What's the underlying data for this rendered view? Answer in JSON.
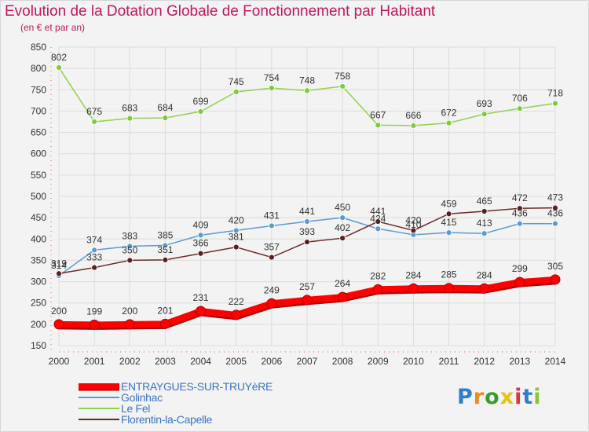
{
  "title": "Evolution de la Dotation Globale de Fonctionnement par Habitant",
  "subtitle": "(en € et par an)",
  "logo_text": "Proxiti",
  "chart_data": {
    "type": "line",
    "title": "Evolution de la Dotation Globale de Fonctionnement par Habitant",
    "subtitle": "(en € et par an)",
    "x": [
      2000,
      2001,
      2002,
      2003,
      2004,
      2005,
      2006,
      2007,
      2008,
      2009,
      2010,
      2011,
      2012,
      2013,
      2014
    ],
    "x_tick_labels": [
      "2000",
      "2001",
      "2002",
      "2003",
      "2004",
      "2005",
      "2006",
      "2007",
      "2008",
      "2009",
      "2010",
      "2011",
      "2012",
      "2013",
      "2014"
    ],
    "ylim": [
      150,
      850
    ],
    "y_tick_labels": [
      "150",
      "200",
      "250",
      "300",
      "350",
      "400",
      "450",
      "500",
      "550",
      "600",
      "650",
      "700",
      "750",
      "800",
      "850"
    ],
    "y_ticks": [
      150,
      200,
      250,
      300,
      350,
      400,
      450,
      500,
      550,
      600,
      650,
      700,
      750,
      800,
      850
    ],
    "grid": true,
    "legend_position": "bottom-left",
    "series": [
      {
        "name": "ENTRAYGUES-SUR-TRUYèRE",
        "color": "#ff0000",
        "shadow": "#b40000",
        "values": [
          200,
          199,
          200,
          201,
          231,
          222,
          249,
          257,
          264,
          282,
          284,
          285,
          284,
          299,
          305
        ],
        "labels": [
          "200",
          "199",
          "200",
          "201",
          "231",
          "222",
          "249",
          "257",
          "264",
          "282",
          "284",
          "285",
          "284",
          "299",
          "305"
        ]
      },
      {
        "name": "Golinhac",
        "color": "#5b9bd5",
        "point": "#5b9bd5",
        "values": [
          314,
          374,
          383,
          385,
          409,
          420,
          431,
          441,
          450,
          424,
          410,
          415,
          413,
          436,
          436
        ],
        "labels": [
          "314",
          "374",
          "383",
          "385",
          "409",
          "420",
          "431",
          "441",
          "450",
          "424",
          "410",
          "415",
          "413",
          "436",
          "436"
        ]
      },
      {
        "name": "Le Fel",
        "color": "#92d050",
        "point": "#7ccc3a",
        "values": [
          802,
          675,
          683,
          684,
          699,
          745,
          754,
          748,
          758,
          667,
          666,
          672,
          693,
          706,
          718
        ],
        "labels": [
          "802",
          "675",
          "683",
          "684",
          "699",
          "745",
          "754",
          "748",
          "758",
          "667",
          "666",
          "672",
          "693",
          "706",
          "718"
        ]
      },
      {
        "name": "Florentin-la-Capelle",
        "color": "#6b2a2a",
        "point": "#5a1f1f",
        "values": [
          319,
          333,
          350,
          351,
          366,
          381,
          357,
          393,
          402,
          441,
          420,
          459,
          465,
          472,
          473
        ],
        "labels": [
          "319",
          "333",
          "350",
          "351",
          "366",
          "381",
          "357",
          "393",
          "402",
          "441",
          "420",
          "459",
          "465",
          "472",
          "473"
        ]
      }
    ]
  }
}
